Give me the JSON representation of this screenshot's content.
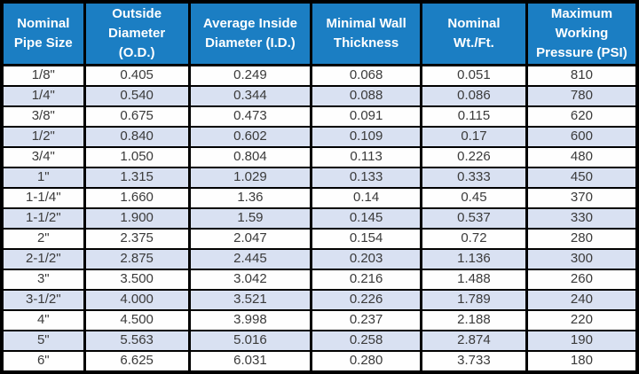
{
  "colors": {
    "header_bg": "#1B7EC3",
    "header_text": "#FFFFFF",
    "alt_row_bg": "#D9E1F2",
    "row_bg": "#FEFEFE",
    "border": "#000000",
    "cell_text": "#3A3A3A"
  },
  "table": {
    "headers": [
      "Nominal\nPipe Size",
      "Outside\nDiameter\n(O.D.)",
      "Average Inside\nDiameter (I.D.)",
      "Minimal Wall\nThickness",
      "Nominal\nWt./Ft.",
      "Maximum\nWorking\nPressure (PSI)"
    ],
    "rows": [
      [
        "1/8\"",
        "0.405",
        "0.249",
        "0.068",
        "0.051",
        "810"
      ],
      [
        "1/4\"",
        "0.540",
        "0.344",
        "0.088",
        "0.086",
        "780"
      ],
      [
        "3/8\"",
        "0.675",
        "0.473",
        "0.091",
        "0.115",
        "620"
      ],
      [
        "1/2\"",
        "0.840",
        "0.602",
        "0.109",
        "0.17",
        "600"
      ],
      [
        "3/4\"",
        "1.050",
        "0.804",
        "0.113",
        "0.226",
        "480"
      ],
      [
        "1\"",
        "1.315",
        "1.029",
        "0.133",
        "0.333",
        "450"
      ],
      [
        "1-1/4\"",
        "1.660",
        "1.36",
        "0.14",
        "0.45",
        "370"
      ],
      [
        "1-1/2\"",
        "1.900",
        "1.59",
        "0.145",
        "0.537",
        "330"
      ],
      [
        "2\"",
        "2.375",
        "2.047",
        "0.154",
        "0.72",
        "280"
      ],
      [
        "2-1/2\"",
        "2.875",
        "2.445",
        "0.203",
        "1.136",
        "300"
      ],
      [
        "3\"",
        "3.500",
        "3.042",
        "0.216",
        "1.488",
        "260"
      ],
      [
        "3-1/2\"",
        "4.000",
        "3.521",
        "0.226",
        "1.789",
        "240"
      ],
      [
        "4\"",
        "4.500",
        "3.998",
        "0.237",
        "2.188",
        "220"
      ],
      [
        "5\"",
        "5.563",
        "5.016",
        "0.258",
        "2.874",
        "190"
      ],
      [
        "6\"",
        "6.625",
        "6.031",
        "0.280",
        "3.733",
        "180"
      ]
    ]
  },
  "chart_data": {
    "type": "table",
    "title": "Pipe size specification table",
    "columns": [
      "Nominal Pipe Size",
      "Outside Diameter (O.D.)",
      "Average Inside Diameter (I.D.)",
      "Minimal Wall Thickness",
      "Nominal Wt./Ft.",
      "Maximum Working Pressure (PSI)"
    ],
    "rows": [
      [
        "1/8\"",
        0.405,
        0.249,
        0.068,
        0.051,
        810
      ],
      [
        "1/4\"",
        0.54,
        0.344,
        0.088,
        0.086,
        780
      ],
      [
        "3/8\"",
        0.675,
        0.473,
        0.091,
        0.115,
        620
      ],
      [
        "1/2\"",
        0.84,
        0.602,
        0.109,
        0.17,
        600
      ],
      [
        "3/4\"",
        1.05,
        0.804,
        0.113,
        0.226,
        480
      ],
      [
        "1\"",
        1.315,
        1.029,
        0.133,
        0.333,
        450
      ],
      [
        "1-1/4\"",
        1.66,
        1.36,
        0.14,
        0.45,
        370
      ],
      [
        "1-1/2\"",
        1.9,
        1.59,
        0.145,
        0.537,
        330
      ],
      [
        "2\"",
        2.375,
        2.047,
        0.154,
        0.72,
        280
      ],
      [
        "2-1/2\"",
        2.875,
        2.445,
        0.203,
        1.136,
        300
      ],
      [
        "3\"",
        3.5,
        3.042,
        0.216,
        1.488,
        260
      ],
      [
        "3-1/2\"",
        4.0,
        3.521,
        0.226,
        1.789,
        240
      ],
      [
        "4\"",
        4.5,
        3.998,
        0.237,
        2.188,
        220
      ],
      [
        "5\"",
        5.563,
        5.016,
        0.258,
        2.874,
        190
      ],
      [
        "6\"",
        6.625,
        6.031,
        0.28,
        3.733,
        180
      ]
    ]
  }
}
